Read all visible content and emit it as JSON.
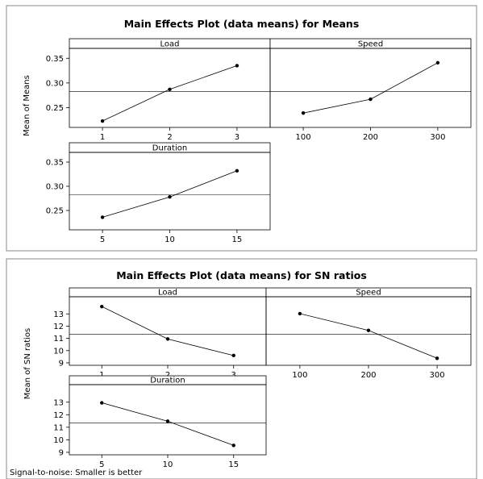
{
  "chart_data": [
    {
      "type": "line",
      "title": "Main Effects Plot (data means) for Means",
      "ylabel": "Mean of Means",
      "ylim": [
        0.21,
        0.37
      ],
      "yticks": [
        "0.25",
        "0.30",
        "0.35"
      ],
      "ytick_values": [
        0.25,
        0.3,
        0.35
      ],
      "grand_mean": 0.2825,
      "footnote": "",
      "panels": [
        {
          "label": "Load",
          "x": [
            1,
            2,
            3
          ],
          "xticks": [
            "1",
            "2",
            "3"
          ],
          "values": [
            0.223,
            0.287,
            0.335
          ]
        },
        {
          "label": "Speed",
          "x": [
            100,
            200,
            300
          ],
          "xticks": [
            "100",
            "200",
            "300"
          ],
          "values": [
            0.239,
            0.267,
            0.341
          ]
        },
        {
          "label": "Duration",
          "x": [
            5,
            10,
            15
          ],
          "xticks": [
            "5",
            "10",
            "15"
          ],
          "values": [
            0.236,
            0.278,
            0.332
          ]
        }
      ]
    },
    {
      "type": "line",
      "title": "Main Effects Plot (data means) for SN ratios",
      "ylabel": "Mean of SN ratios",
      "ylim": [
        8.8,
        14.4
      ],
      "yticks": [
        "9",
        "10",
        "11",
        "12",
        "13"
      ],
      "ytick_values": [
        9,
        10,
        11,
        12,
        13
      ],
      "grand_mean": 11.33,
      "footnote": "Signal-to-noise: Smaller is better",
      "panels": [
        {
          "label": "Load",
          "x": [
            1,
            2,
            3
          ],
          "xticks": [
            "1",
            "2",
            "3"
          ],
          "values": [
            13.6,
            10.95,
            9.6
          ]
        },
        {
          "label": "Speed",
          "x": [
            100,
            200,
            300
          ],
          "xticks": [
            "100",
            "200",
            "300"
          ],
          "values": [
            13.02,
            11.65,
            9.37
          ]
        },
        {
          "label": "Duration",
          "x": [
            5,
            10,
            15
          ],
          "xticks": [
            "5",
            "10",
            "15"
          ],
          "values": [
            12.95,
            11.48,
            9.55
          ]
        }
      ]
    }
  ]
}
